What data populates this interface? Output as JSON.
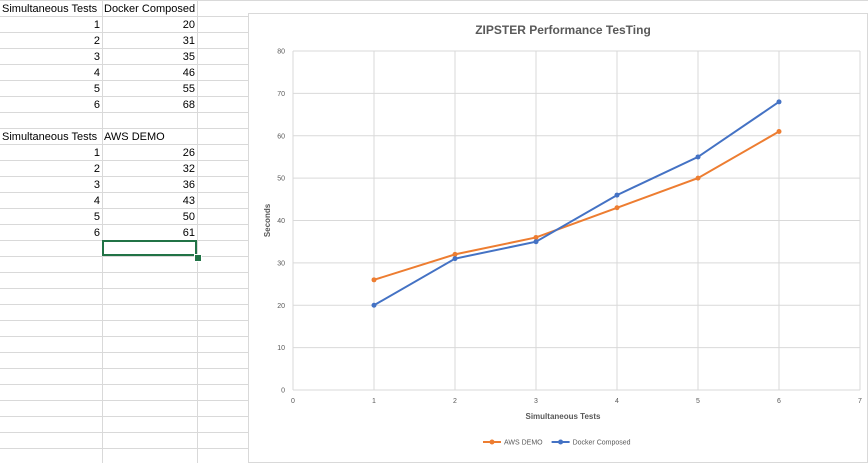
{
  "table1": {
    "headers": [
      "Simultaneous Tests",
      "Docker Composed"
    ],
    "rows": [
      [
        "1",
        "20"
      ],
      [
        "2",
        "31"
      ],
      [
        "3",
        "35"
      ],
      [
        "4",
        "46"
      ],
      [
        "5",
        "55"
      ],
      [
        "6",
        "68"
      ]
    ]
  },
  "table2": {
    "headers": [
      "Simultaneous Tests",
      "AWS DEMO"
    ],
    "rows": [
      [
        "1",
        "26"
      ],
      [
        "2",
        "32"
      ],
      [
        "3",
        "36"
      ],
      [
        "4",
        "43"
      ],
      [
        "5",
        "50"
      ],
      [
        "6",
        "61"
      ]
    ]
  },
  "chart_data": {
    "type": "line",
    "title": "ZIPSTER Performance TesTing",
    "xlabel": "Simultaneous Tests",
    "ylabel": "Seconds",
    "xlim": [
      0,
      7
    ],
    "ylim": [
      0,
      80
    ],
    "x_ticks": [
      "0",
      "1",
      "2",
      "3",
      "4",
      "5",
      "6",
      "7"
    ],
    "y_ticks": [
      "0",
      "10",
      "20",
      "30",
      "40",
      "50",
      "60",
      "70",
      "80"
    ],
    "grid": true,
    "legend_position": "bottom",
    "series": [
      {
        "name": "AWS DEMO",
        "color": "#ed7d31",
        "x": [
          1,
          2,
          3,
          4,
          5,
          6
        ],
        "values": [
          26,
          32,
          36,
          43,
          50,
          61
        ]
      },
      {
        "name": "Docker Composed",
        "color": "#4472c4",
        "x": [
          1,
          2,
          3,
          4,
          5,
          6
        ],
        "values": [
          20,
          31,
          35,
          46,
          55,
          68
        ]
      }
    ]
  }
}
